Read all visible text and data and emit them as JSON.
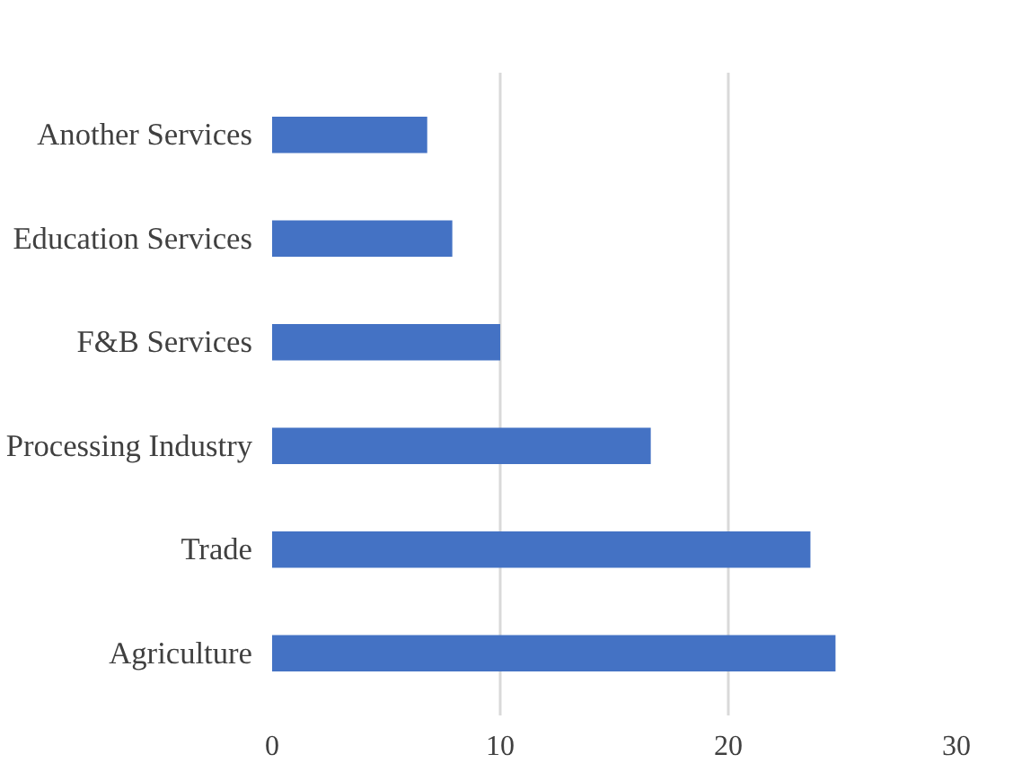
{
  "chart_data": {
    "type": "bar",
    "orientation": "horizontal",
    "categories": [
      "Another Services",
      "Education Services",
      "F&B Services",
      "Processing Industry",
      "Trade",
      "Agriculture"
    ],
    "values": [
      6.8,
      7.9,
      10,
      16.6,
      23.6,
      24.7
    ],
    "color": "#4472c4",
    "xlim": [
      0,
      30
    ],
    "xticks": [
      0,
      10,
      20,
      30
    ],
    "grid": "x"
  }
}
